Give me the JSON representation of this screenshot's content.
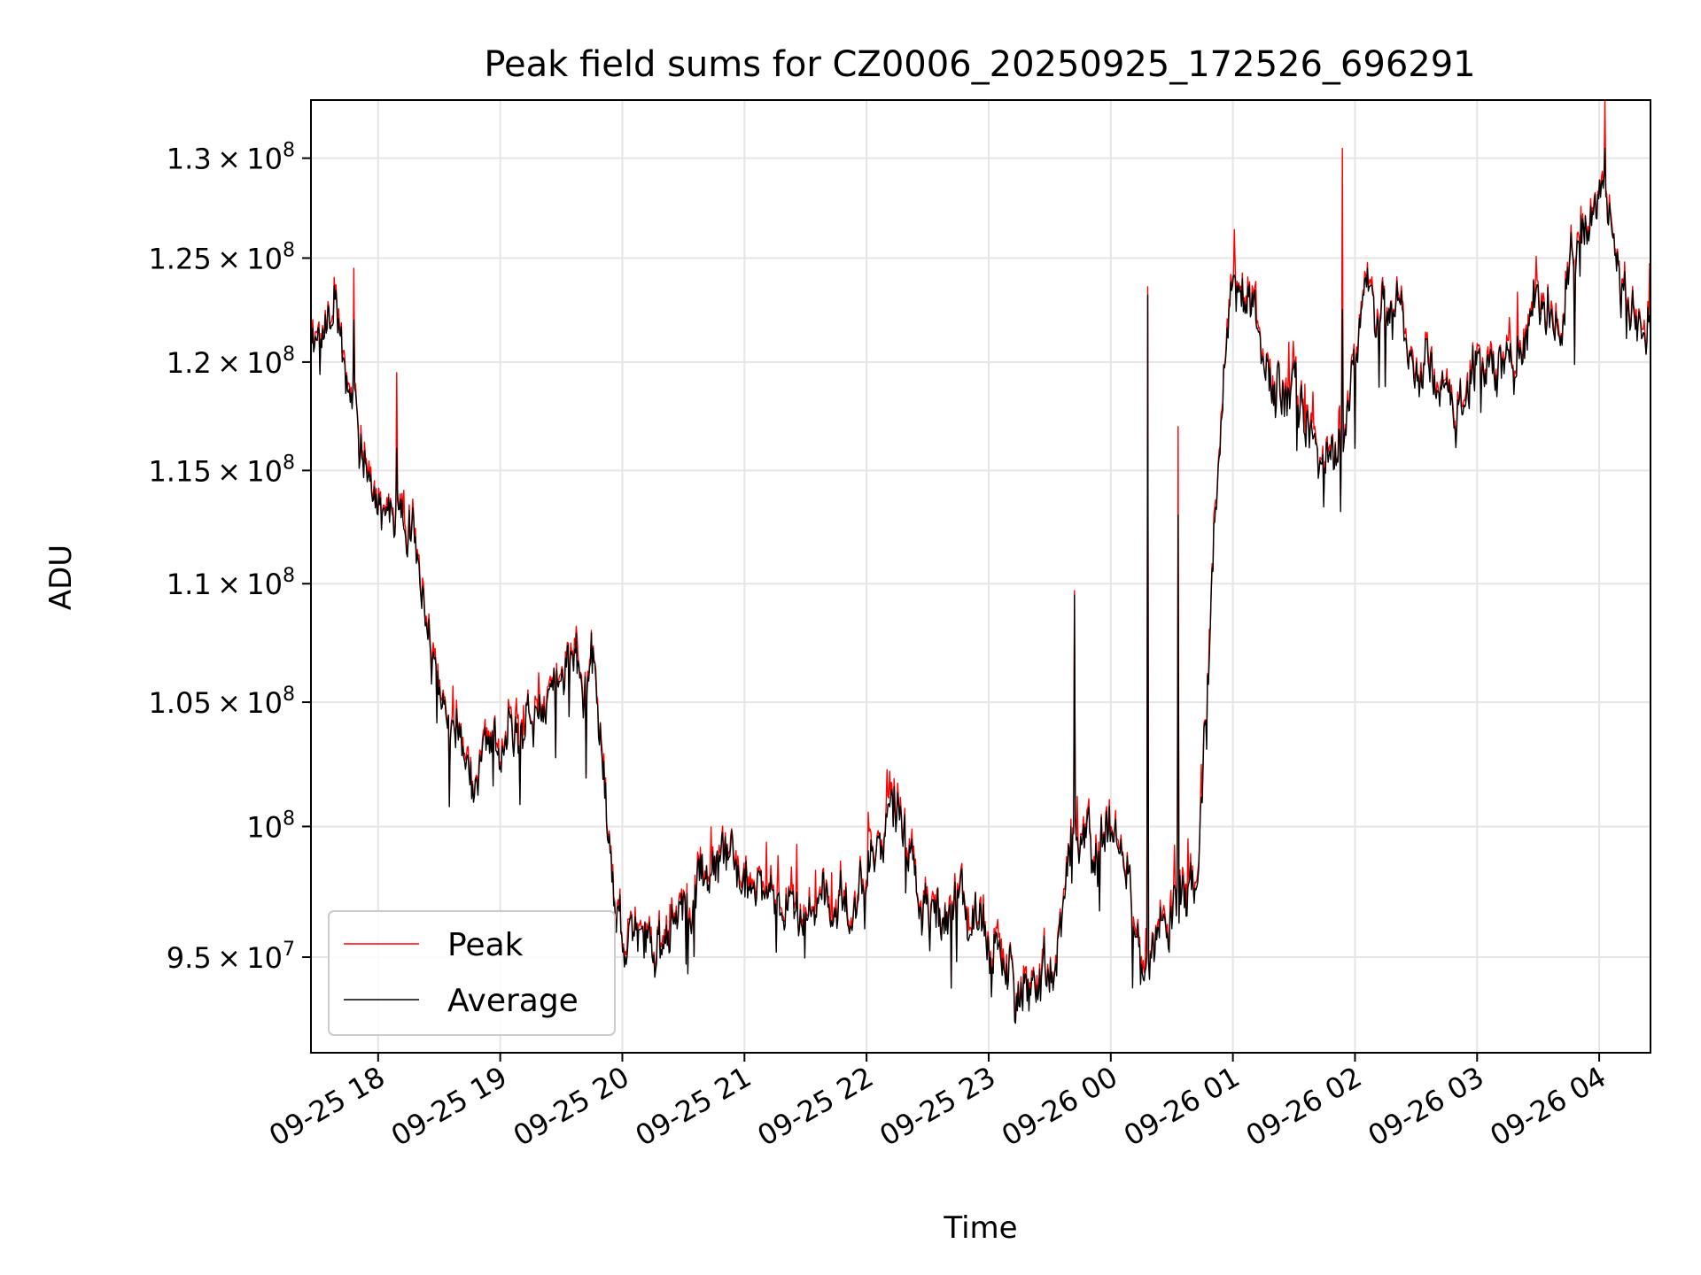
{
  "chart_data": {
    "type": "line",
    "title": "Peak field sums for CZ0006_20250925_172526_696291",
    "xlabel": "Time",
    "ylabel": "ADU",
    "yscale": "log",
    "grid": true,
    "legend_position": "lower-left",
    "xlim": [
      "09-25 17:27",
      "09-26 04:25"
    ],
    "ylim": [
      91500000,
      133000000
    ],
    "x_ticks": [
      "09-25 18",
      "09-25 19",
      "09-25 20",
      "09-25 21",
      "09-25 22",
      "09-25 23",
      "09-26 00",
      "09-26 01",
      "09-26 02",
      "09-26 03",
      "09-26 04"
    ],
    "y_ticks": [
      {
        "mantissa": "9.5",
        "exponent": "7",
        "value": 95000000
      },
      {
        "mantissa": "",
        "exponent": "8",
        "value": 100000000
      },
      {
        "mantissa": "1.05",
        "exponent": "8",
        "value": 105000000
      },
      {
        "mantissa": "1.1",
        "exponent": "8",
        "value": 110000000
      },
      {
        "mantissa": "1.15",
        "exponent": "8",
        "value": 115000000
      },
      {
        "mantissa": "1.2",
        "exponent": "8",
        "value": 120000000
      },
      {
        "mantissa": "1.25",
        "exponent": "8",
        "value": 125000000
      },
      {
        "mantissa": "1.3",
        "exponent": "8",
        "value": 130000000
      }
    ],
    "series": [
      {
        "name": "Peak",
        "color": "#ff0000"
      },
      {
        "name": "Average",
        "color": "#000000"
      }
    ],
    "anchor_hours": [
      0,
      0.2,
      0.5,
      0.85,
      1.0,
      1.3,
      1.6,
      2.0,
      2.15,
      2.3,
      2.5,
      2.9,
      3.3,
      3.6,
      4.0,
      4.4,
      4.6,
      4.8,
      5.0,
      5.3,
      5.6,
      5.8,
      5.95,
      6.1,
      6.25,
      6.35,
      6.5,
      6.65,
      6.8,
      7.0,
      7.1,
      7.25,
      7.5,
      7.7,
      7.9,
      8.1,
      8.3,
      8.6,
      8.9,
      9.2,
      9.5,
      9.8,
      10.0,
      10.2,
      10.35,
      10.55,
      10.97
    ],
    "average_anchor_values": [
      122000000,
      121000000,
      114000000,
      111000000,
      106000000,
      102500000,
      103000000,
      106000000,
      106500000,
      107000000,
      96500000,
      95300000,
      98500000,
      97800000,
      97000000,
      96500000,
      98000000,
      101000000,
      96500000,
      97700000,
      95000000,
      93700000,
      93500000,
      94800000,
      99200000,
      99000000,
      99200000,
      98500000,
      94500000,
      96000000,
      97500000,
      97500000,
      123000000,
      123500000,
      119000000,
      117500000,
      114000000,
      122000000,
      122200000,
      120000000,
      119000000,
      120000000,
      121500000,
      122000000,
      125000000,
      127500000,
      122000000
    ],
    "notable_spikes": [
      {
        "hour": 0.35,
        "peak": 124500000,
        "average": 122000000
      },
      {
        "hour": 0.7,
        "peak": 119500000,
        "average": 116000000
      },
      {
        "hour": 6.25,
        "peak": 109700000,
        "average": 109500000
      },
      {
        "hour": 6.85,
        "peak": 123600000,
        "average": 123200000
      },
      {
        "hour": 7.1,
        "peak": 117000000,
        "average": 113000000
      },
      {
        "hour": 8.45,
        "peak": 130500000,
        "average": 122500000
      },
      {
        "hour": 8.55,
        "average": 116000000,
        "peak": 116200000
      },
      {
        "hour": 10.6,
        "peak": 133000000,
        "average": 130500000
      }
    ]
  }
}
